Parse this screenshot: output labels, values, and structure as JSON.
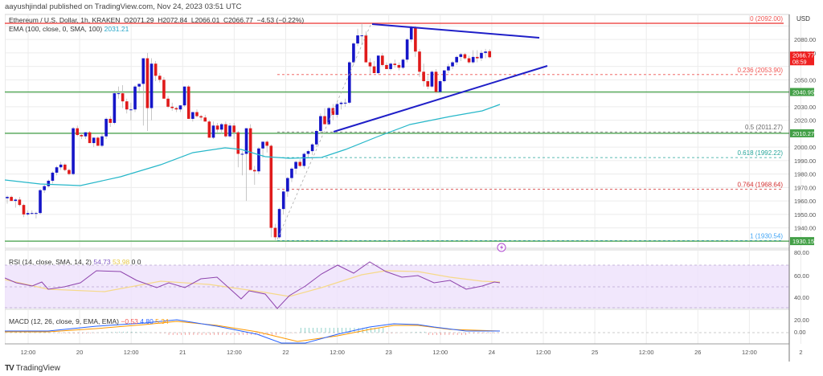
{
  "publisher": "aayushjindal published on TradingView.com, Nov 24, 2023 03:51 UTC",
  "legend": {
    "symbol": "Ethereum / U.S. Dollar, 1h, KRAKEN",
    "open": "O2071.29",
    "high": "H2072.84",
    "low": "L2066.01",
    "close": "C2066.77",
    "change": "−4.53 (−0.22%)",
    "ema_label": "EMA (100, close, 0, SMA, 100)",
    "ema_value": "2031.21",
    "rsi_label": "RSI (14, close, SMA, 14, 2)",
    "rsi_value": "54.73",
    "rsi_sma": "53.98",
    "rsi_extra1": "0",
    "rsi_extra2": "0",
    "macd_label": "MACD (12, 26, close, 9, EMA, EMA)",
    "macd_hist": "−0.53",
    "macd_line": "4.80",
    "macd_signal": "5.34"
  },
  "price_axis": {
    "currency": "USD",
    "ticks": [
      "2080.00",
      "2070.00",
      "2050.00",
      "2030.00",
      "2020.00",
      "2000.00",
      "1990.00",
      "1980.00",
      "1970.00",
      "1960.00",
      "1950.00",
      "1940.00"
    ],
    "current_price": "2066.77",
    "countdown": "08:59",
    "level_labels": [
      "2040.95",
      "2010.27",
      "1930.15"
    ]
  },
  "rsi_axis": {
    "ticks": [
      "80.00",
      "60.00",
      "40.00",
      "20.00"
    ]
  },
  "macd_axis": {
    "ticks": [
      "0.00"
    ]
  },
  "time_axis": {
    "ticks": [
      "12:00",
      "20",
      "12:00",
      "21",
      "12:00",
      "22",
      "12:00",
      "23",
      "12:00",
      "24",
      "12:00",
      "25",
      "12:00",
      "26",
      "12:00",
      "2"
    ]
  },
  "fib_levels": [
    {
      "label": "0 (2092.00)",
      "price": 2092.0,
      "color": "#ef5350"
    },
    {
      "label": "0.236 (2053.90)",
      "price": 2053.9,
      "color": "#ef5350"
    },
    {
      "label": "0.5 (2011.27)",
      "price": 2011.27,
      "color": "#666666"
    },
    {
      "label": "0.618 (1992.22)",
      "price": 1992.22,
      "color": "#26a69a"
    },
    {
      "label": "0.764 (1968.64)",
      "price": 1968.64,
      "color": "#d32f2f"
    },
    {
      "label": "1 (1930.54)",
      "price": 1930.54,
      "color": "#42a5f5"
    }
  ],
  "footer": {
    "brand_mark": "TV",
    "brand_name": "TradingView"
  },
  "colors": {
    "up": "#1515c8",
    "down": "#e01b1b",
    "support": "#43a047",
    "ema": "#26b7c9",
    "trendline": "#1f1fc8",
    "rsi": "#8e44ad",
    "rsi_band": "#efe3fb",
    "price_tag": "#ef2020",
    "level_tag": "#43a047"
  },
  "chart_data": {
    "type": "candlestick",
    "title": "Ethereum / U.S. Dollar, 1h, KRAKEN",
    "ylabel": "USD",
    "ylim": [
      1925,
      2095
    ],
    "x_ticks": [
      "12:00",
      "20",
      "12:00",
      "21",
      "12:00",
      "22",
      "12:00",
      "23",
      "12:00",
      "24",
      "12:00",
      "25",
      "12:00",
      "26",
      "12:00",
      "2"
    ],
    "horizontal_supports": [
      2040.95,
      2010.27,
      1930.15
    ],
    "ema100_last": 2031.21,
    "candles": [
      [
        1962,
        1964,
        1958,
        1963
      ],
      [
        1963,
        1964,
        1960,
        1960
      ],
      [
        1960,
        1962,
        1955,
        1961
      ],
      [
        1961,
        1963,
        1956,
        1957
      ],
      [
        1957,
        1958,
        1948,
        1950
      ],
      [
        1950,
        1953,
        1949,
        1951
      ],
      [
        1951,
        1953,
        1950,
        1951
      ],
      [
        1951,
        1952,
        1947,
        1951
      ],
      [
        1951,
        1969,
        1950,
        1968
      ],
      [
        1968,
        1972,
        1966,
        1971
      ],
      [
        1971,
        1976,
        1970,
        1975
      ],
      [
        1975,
        1982,
        1973,
        1981
      ],
      [
        1981,
        1986,
        1979,
        1985
      ],
      [
        1985,
        1989,
        1983,
        1987
      ],
      [
        1987,
        1988,
        1982,
        1983
      ],
      [
        1983,
        1984,
        1979,
        1980
      ],
      [
        1980,
        2015,
        1979,
        2014
      ],
      [
        2014,
        2016,
        2008,
        2009
      ],
      [
        2009,
        2011,
        2006,
        2008
      ],
      [
        2008,
        2011,
        2006,
        2011
      ],
      [
        2011,
        2012,
        2003,
        2003
      ],
      [
        2003,
        2007,
        2000,
        2007
      ],
      [
        2007,
        2008,
        2001,
        2001
      ],
      [
        2001,
        2010,
        2000,
        2008
      ],
      [
        2008,
        2022,
        2006,
        2021
      ],
      [
        2021,
        2023,
        2015,
        2018
      ],
      [
        2018,
        2042,
        2017,
        2040
      ],
      [
        2040,
        2045,
        2036,
        2040
      ],
      [
        2040,
        2046,
        2029,
        2034
      ],
      [
        2034,
        2036,
        2025,
        2028
      ],
      [
        2028,
        2033,
        2020,
        2028
      ],
      [
        2028,
        2046,
        2026,
        2045
      ],
      [
        2045,
        2047,
        2040,
        2047
      ],
      [
        2047,
        2066,
        2016,
        2066
      ],
      [
        2066,
        2070,
        2012,
        2029
      ],
      [
        2029,
        2066,
        2020,
        2062
      ],
      [
        2062,
        2064,
        2049,
        2053
      ],
      [
        2053,
        2055,
        2048,
        2050
      ],
      [
        2050,
        2052,
        2036,
        2036
      ],
      [
        2036,
        2038,
        2029,
        2030
      ],
      [
        2030,
        2033,
        2027,
        2029
      ],
      [
        2029,
        2030,
        2026,
        2028
      ],
      [
        2028,
        2031,
        2026,
        2031
      ],
      [
        2031,
        2045,
        2030,
        2045
      ],
      [
        2045,
        2046,
        2021,
        2021
      ],
      [
        2021,
        2025,
        2019,
        2026
      ],
      [
        2026,
        2028,
        2022,
        2023
      ],
      [
        2023,
        2024,
        2020,
        2022
      ],
      [
        2022,
        2024,
        2020,
        2019
      ],
      [
        2019,
        2020,
        2007,
        2007
      ],
      [
        2007,
        2019,
        2006,
        2016
      ],
      [
        2016,
        2018,
        2011,
        2013
      ],
      [
        2013,
        2018,
        2010,
        2017
      ],
      [
        2017,
        2019,
        2007,
        2008
      ],
      [
        2008,
        2018,
        2007,
        2016
      ],
      [
        2016,
        2018,
        2006,
        2011
      ],
      [
        2011,
        2012,
        1985,
        1995
      ],
      [
        1995,
        1997,
        1979,
        1995
      ],
      [
        1995,
        2014,
        1960,
        2014
      ],
      [
        2014,
        2017,
        1985,
        1983
      ],
      [
        1983,
        1986,
        1972,
        1982
      ],
      [
        1982,
        2000,
        1980,
        1999
      ],
      [
        1999,
        2004,
        1992,
        2004
      ],
      [
        2004,
        2005,
        1996,
        2001
      ],
      [
        2001,
        2002,
        1933,
        1940
      ],
      [
        1940,
        1943,
        1931,
        1933
      ],
      [
        1933,
        1955,
        1932,
        1954
      ],
      [
        1954,
        1968,
        1950,
        1967
      ],
      [
        1967,
        1978,
        1963,
        1977
      ],
      [
        1977,
        1985,
        1974,
        1984
      ],
      [
        1984,
        1990,
        1980,
        1989
      ],
      [
        1989,
        1991,
        1985,
        1986
      ],
      [
        1986,
        1996,
        1984,
        1995
      ],
      [
        1995,
        1998,
        1992,
        1997
      ],
      [
        1997,
        2003,
        1994,
        2002
      ],
      [
        2002,
        2013,
        2000,
        2012
      ],
      [
        2012,
        2025,
        2010,
        2023
      ],
      [
        2023,
        2029,
        2018,
        2017
      ],
      [
        2017,
        2030,
        2016,
        2029
      ],
      [
        2029,
        2032,
        2020,
        2024
      ],
      [
        2024,
        2033,
        2022,
        2032
      ],
      [
        2032,
        2034,
        2028,
        2033
      ],
      [
        2033,
        2036,
        2030,
        2033
      ],
      [
        2033,
        2064,
        2032,
        2063
      ],
      [
        2063,
        2078,
        2061,
        2077
      ],
      [
        2077,
        2088,
        2075,
        2083
      ],
      [
        2083,
        2092,
        2076,
        2083
      ],
      [
        2083,
        2086,
        2063,
        2063
      ],
      [
        2063,
        2066,
        2054,
        2060
      ],
      [
        2060,
        2064,
        2055,
        2055
      ],
      [
        2055,
        2068,
        2054,
        2068
      ],
      [
        2068,
        2070,
        2060,
        2061
      ],
      [
        2061,
        2063,
        2058,
        2058
      ],
      [
        2058,
        2063,
        2057,
        2062
      ],
      [
        2062,
        2065,
        2059,
        2061
      ],
      [
        2061,
        2063,
        2057,
        2059
      ],
      [
        2059,
        2066,
        2058,
        2065
      ],
      [
        2065,
        2081,
        2063,
        2080
      ],
      [
        2080,
        2090,
        2078,
        2089
      ],
      [
        2089,
        2090,
        2067,
        2071
      ],
      [
        2071,
        2073,
        2052,
        2056
      ],
      [
        2056,
        2062,
        2045,
        2049
      ],
      [
        2049,
        2053,
        2043,
        2045
      ],
      [
        2045,
        2057,
        2044,
        2056
      ],
      [
        2056,
        2058,
        2040,
        2041
      ],
      [
        2041,
        2050,
        2040,
        2049
      ],
      [
        2049,
        2057,
        2048,
        2057
      ],
      [
        2057,
        2062,
        2055,
        2060
      ],
      [
        2060,
        2064,
        2058,
        2063
      ],
      [
        2063,
        2068,
        2061,
        2067
      ],
      [
        2067,
        2070,
        2064,
        2069
      ],
      [
        2069,
        2070,
        2065,
        2066
      ],
      [
        2066,
        2068,
        2062,
        2063
      ],
      [
        2063,
        2072,
        2062,
        2067
      ],
      [
        2067,
        2072,
        2063,
        2066
      ],
      [
        2066,
        2072,
        2064,
        2070
      ],
      [
        2070,
        2073,
        2066,
        2071
      ],
      [
        2071.29,
        2072.84,
        2066.01,
        2066.77
      ]
    ],
    "trendlines": [
      {
        "name": "descending-resistance",
        "from": [
          2092,
          "23 02:00"
        ],
        "to": [
          2081,
          "24 12:00"
        ]
      },
      {
        "name": "ascending-support",
        "from": [
          2010,
          "22 12:00"
        ],
        "to": [
          2057,
          "24 12:00"
        ]
      }
    ],
    "rsi": {
      "period": 14,
      "last": 54.73,
      "sma_last": 53.98,
      "band": [
        30,
        70
      ],
      "axis_ticks": [
        80,
        60,
        40,
        20
      ]
    },
    "macd": {
      "fast": 12,
      "slow": 26,
      "signal": 9,
      "histogram_last": -0.53,
      "macd_last": 4.8,
      "signal_last": 5.34,
      "axis_ticks": [
        0
      ]
    }
  }
}
